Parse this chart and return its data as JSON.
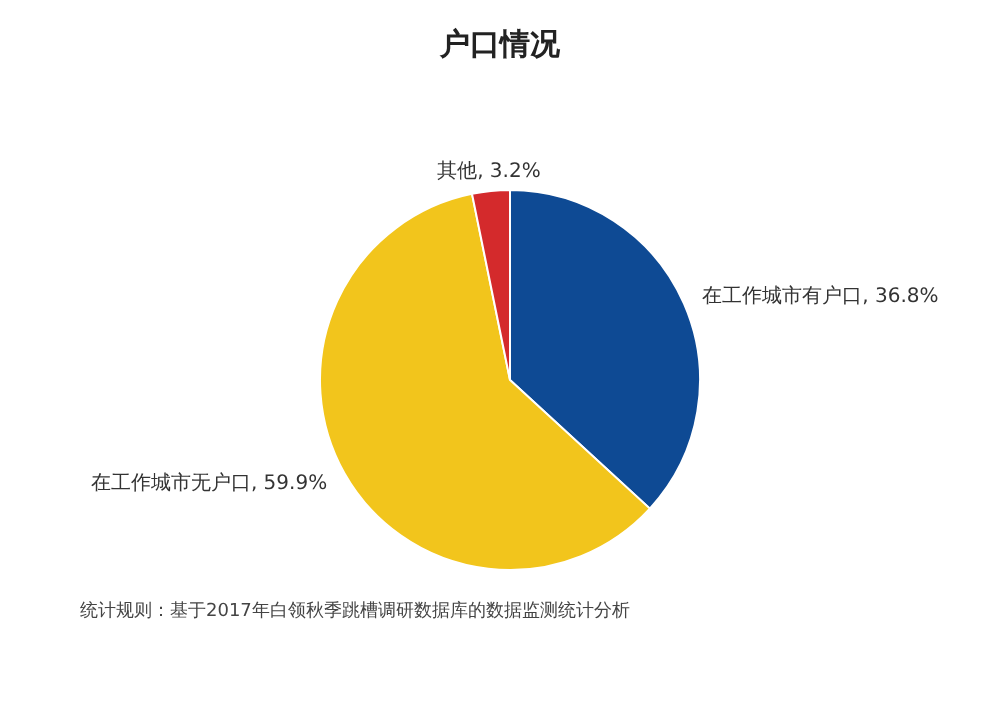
{
  "chart_data": {
    "type": "pie",
    "title": "户口情况",
    "categories": [
      "在工作城市有户口",
      "在工作城市无户口",
      "其他"
    ],
    "values": [
      36.8,
      59.9,
      3.2
    ],
    "value_labels": [
      "36.8%",
      "59.9%",
      "3.2%"
    ],
    "colors": [
      "#0e4a94",
      "#f2c51c",
      "#d42a2c"
    ],
    "annotations": [
      "统计规则：基于2017年白领秋季跳槽调研数据库的数据监测统计分析"
    ]
  }
}
